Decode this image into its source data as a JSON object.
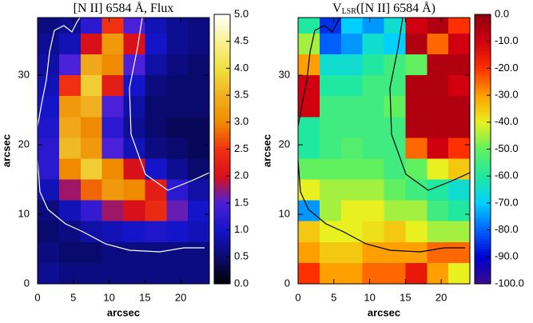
{
  "chart_data": [
    {
      "type": "heatmap",
      "title": "[N II] 6584 Å, Flux",
      "xlabel": "arcsec",
      "ylabel": "arcsec",
      "x": [
        1.5,
        4.5,
        7.5,
        10.5,
        13.5,
        16.5,
        19.5,
        22.5
      ],
      "y": [
        37.5,
        34.5,
        31.5,
        28.5,
        25.5,
        22.5,
        19.5,
        16.5,
        13.5,
        10.5,
        7.5,
        4.5,
        1.5
      ],
      "z": [
        [
          0.6,
          0.7,
          1.2,
          2.5,
          1.5,
          0.9,
          0.7,
          0.6
        ],
        [
          0.7,
          0.9,
          2.0,
          3.2,
          2.0,
          1.0,
          0.7,
          0.6
        ],
        [
          0.8,
          1.5,
          3.4,
          3.0,
          1.5,
          0.8,
          0.6,
          0.5
        ],
        [
          0.9,
          2.5,
          3.8,
          2.2,
          1.0,
          0.6,
          0.5,
          0.5
        ],
        [
          1.0,
          3.2,
          3.5,
          1.5,
          0.8,
          0.5,
          0.5,
          0.5
        ],
        [
          1.1,
          3.4,
          3.0,
          1.2,
          0.7,
          0.5,
          0.4,
          0.4
        ],
        [
          1.2,
          3.6,
          3.2,
          1.5,
          0.9,
          0.6,
          0.5,
          0.4
        ],
        [
          1.2,
          3.0,
          3.8,
          3.0,
          2.0,
          1.0,
          0.7,
          0.5
        ],
        [
          0.9,
          1.8,
          2.8,
          3.2,
          3.0,
          2.2,
          1.2,
          0.8
        ],
        [
          0.6,
          0.9,
          1.3,
          1.8,
          2.0,
          2.4,
          1.6,
          1.0
        ],
        [
          0.5,
          0.6,
          0.8,
          0.9,
          1.0,
          1.1,
          1.0,
          0.9
        ],
        [
          0.6,
          0.5,
          0.5,
          0.6,
          0.6,
          0.6,
          0.6,
          0.6
        ],
        [
          0.7,
          0.6,
          0.6,
          0.6,
          0.6,
          0.6,
          0.6,
          0.6
        ]
      ],
      "xlim": [
        0,
        24
      ],
      "ylim": [
        0,
        38.3
      ],
      "xticks": [
        0,
        5,
        10,
        15,
        20
      ],
      "yticks": [
        0,
        10,
        20,
        30
      ],
      "colorbar": {
        "zlim": [
          0,
          5
        ],
        "ticks": [
          {
            "value": 0,
            "label": "0.0"
          },
          {
            "value": 0.5,
            "label": "0.5"
          },
          {
            "value": 1,
            "label": "1.0"
          },
          {
            "value": 1.5,
            "label": "1.5"
          },
          {
            "value": 2,
            "label": "2.0"
          },
          {
            "value": 2.5,
            "label": "2.5"
          },
          {
            "value": 3,
            "label": "3.0"
          },
          {
            "value": 3.5,
            "label": "3.5"
          },
          {
            "value": 4,
            "label": "4.0"
          },
          {
            "value": 4.5,
            "label": "4.5"
          },
          {
            "value": 5,
            "label": "5.0"
          }
        ],
        "colors": [
          "#000000",
          "#0a0a6e",
          "#1414c8",
          "#4a20d8",
          "#d8101a",
          "#f03010",
          "#f08a00",
          "#f0b020",
          "#f0e040",
          "#f8f090",
          "#ffffff"
        ]
      }
    },
    {
      "type": "heatmap",
      "title": "V",
      "title_sub": "LSR",
      "title_rest": "([N II] 6584 Å)",
      "xlabel": "arcsec",
      "ylabel": "arcsec",
      "x": [
        1.5,
        4.5,
        7.5,
        10.5,
        13.5,
        16.5,
        19.5,
        22.5
      ],
      "y": [
        37.5,
        34.5,
        31.5,
        28.5,
        25.5,
        22.5,
        19.5,
        16.5,
        13.5,
        10.5,
        7.5,
        4.5,
        1.5
      ],
      "z": [
        [
          -60,
          -85,
          -70,
          -75,
          -65,
          -10,
          -5,
          -20
        ],
        [
          -45,
          -80,
          -75,
          -65,
          -70,
          -5,
          -25,
          -10
        ],
        [
          -30,
          -65,
          -65,
          -60,
          -55,
          -50,
          -5,
          -5
        ],
        [
          -10,
          -60,
          -60,
          -55,
          -55,
          -5,
          -5,
          -10
        ],
        [
          -10,
          -55,
          -55,
          -55,
          -50,
          -5,
          -5,
          -5
        ],
        [
          -60,
          -55,
          -55,
          -55,
          -55,
          -5,
          -5,
          -5
        ],
        [
          -60,
          -55,
          -52,
          -55,
          -55,
          -25,
          -10,
          -20
        ],
        [
          -50,
          -50,
          -50,
          -50,
          -55,
          -50,
          -40,
          -35
        ],
        [
          -40,
          -45,
          -45,
          -45,
          -50,
          -55,
          -60,
          -65
        ],
        [
          -75,
          -45,
          -40,
          -40,
          -45,
          -45,
          -55,
          -60
        ],
        [
          -35,
          -40,
          -40,
          -38,
          -35,
          -40,
          -45,
          -45
        ],
        [
          -30,
          -35,
          -35,
          -30,
          -30,
          -30,
          -25,
          -25
        ],
        [
          -20,
          -30,
          -30,
          -25,
          -25,
          -15,
          -30,
          -40
        ]
      ],
      "xlim": [
        0,
        24
      ],
      "ylim": [
        0,
        38.3
      ],
      "xticks": [
        0,
        5,
        10,
        15,
        20
      ],
      "yticks": [
        0,
        10,
        20,
        30
      ],
      "colorbar": {
        "zlim": [
          -100,
          0
        ],
        "ticks": [
          {
            "value": -100,
            "label": "-100.0"
          },
          {
            "value": -90,
            "label": "-90.0"
          },
          {
            "value": -80,
            "label": "-80.0"
          },
          {
            "value": -70,
            "label": "-70.0"
          },
          {
            "value": -60,
            "label": "-60.0"
          },
          {
            "value": -50,
            "label": "-50.0"
          },
          {
            "value": -40,
            "label": "-40.0"
          },
          {
            "value": -30,
            "label": "-30.0"
          },
          {
            "value": -20,
            "label": "-20.0"
          },
          {
            "value": -10,
            "label": "-10.0"
          },
          {
            "value": 0,
            "label": "0.0"
          }
        ],
        "colors": [
          "#3a0a8a",
          "#0000d0",
          "#0060ff",
          "#00d0ff",
          "#20e8a0",
          "#60f060",
          "#e8f020",
          "#ffa000",
          "#ff3000",
          "#d00010",
          "#900010"
        ]
      }
    }
  ]
}
